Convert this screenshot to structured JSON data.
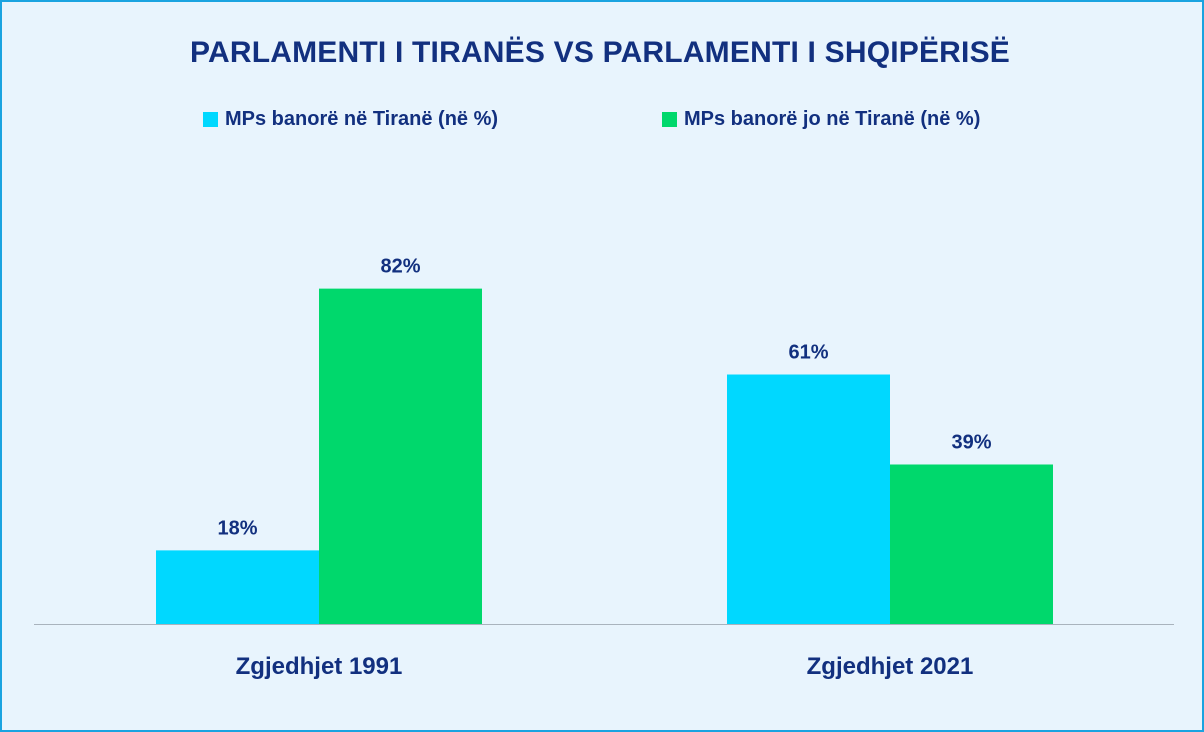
{
  "chart_data": {
    "type": "bar",
    "title": "PARLAMENTI I TIRANËS VS PARLAMENTI I SHQIPËRISË",
    "categories": [
      "Zgjedhjet 1991",
      "Zgjedhjet 2021"
    ],
    "series": [
      {
        "name": "MPs banorë në Tiranë (në %)",
        "values": [
          18,
          61
        ],
        "labels": [
          "18%",
          "61%"
        ],
        "color": "#00d8ff"
      },
      {
        "name": "MPs banorë jo në Tiranë (në %)",
        "values": [
          82,
          39
        ],
        "labels": [
          "82%",
          "39%"
        ],
        "color": "#00d86c"
      }
    ],
    "ylim": [
      0,
      100
    ],
    "xlabel": "",
    "ylabel": "",
    "grid": false,
    "legend": "top"
  },
  "colors": {
    "text": "#12307f",
    "background": "#e8f4fd",
    "border": "#1aa3e0",
    "axis": "#a9b3bd"
  }
}
